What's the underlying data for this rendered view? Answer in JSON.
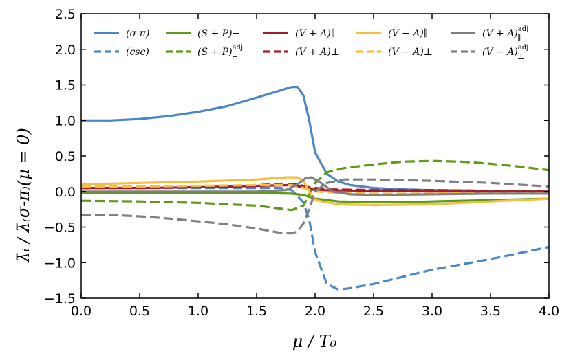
{
  "chart_data": {
    "type": "line",
    "title": "",
    "xlabel": "μ / T₀",
    "ylabel": "λ̄ᵢ / λ̄₍σ-π₎(μ = 0)",
    "xlim": [
      0.0,
      4.0
    ],
    "ylim": [
      -1.5,
      2.5
    ],
    "xticks": [
      0.0,
      0.5,
      1.0,
      1.5,
      2.0,
      2.5,
      3.0,
      3.5,
      4.0
    ],
    "yticks": [
      -1.5,
      -1.0,
      -0.5,
      0.0,
      0.5,
      1.0,
      1.5,
      2.0,
      2.5
    ],
    "xtick_labels": [
      "0.0",
      "0.5",
      "1.0",
      "1.5",
      "2.0",
      "2.5",
      "3.0",
      "3.5",
      "4.0"
    ],
    "ytick_labels": [
      "−1.5",
      "−1.0",
      "−0.5",
      "0.0",
      "0.5",
      "1.0",
      "1.5",
      "2.0",
      "2.5"
    ],
    "grid": false,
    "legend_position": "top",
    "series": [
      {
        "name": "(σ-π)",
        "color": "#4a86c8",
        "style": "solid",
        "x": [
          0,
          0.25,
          0.5,
          0.75,
          1.0,
          1.25,
          1.5,
          1.7,
          1.8,
          1.85,
          1.9,
          1.95,
          2.0,
          2.1,
          2.2,
          2.3,
          2.5,
          2.75,
          3.0,
          3.5,
          4.0
        ],
        "y": [
          1.0,
          1.0,
          1.02,
          1.06,
          1.12,
          1.2,
          1.32,
          1.42,
          1.47,
          1.47,
          1.35,
          1.0,
          0.55,
          0.25,
          0.14,
          0.09,
          0.05,
          0.03,
          0.02,
          0.01,
          0.0
        ]
      },
      {
        "name": "(csc)",
        "color": "#4a86c8",
        "style": "dashed",
        "x": [
          0,
          0.5,
          1.0,
          1.5,
          1.7,
          1.8,
          1.9,
          1.95,
          2.0,
          2.1,
          2.2,
          2.3,
          2.5,
          2.75,
          3.0,
          3.5,
          4.0
        ],
        "y": [
          0.05,
          0.05,
          0.05,
          0.05,
          0.05,
          0.02,
          -0.15,
          -0.4,
          -0.85,
          -1.3,
          -1.38,
          -1.36,
          -1.3,
          -1.2,
          -1.1,
          -0.95,
          -0.78
        ]
      },
      {
        "name": "(S+P)−",
        "color": "#5f9a14",
        "style": "solid",
        "x": [
          0,
          0.5,
          1.0,
          1.5,
          1.8,
          1.9,
          2.0,
          2.2,
          2.5,
          2.75,
          3.0,
          3.5,
          4.0
        ],
        "y": [
          -0.02,
          -0.02,
          -0.02,
          -0.02,
          -0.03,
          -0.05,
          -0.1,
          -0.14,
          -0.15,
          -0.15,
          -0.14,
          -0.12,
          -0.1
        ]
      },
      {
        "name": "(S+P)−adj",
        "color": "#5f9a14",
        "style": "dashed",
        "x": [
          0,
          0.5,
          1.0,
          1.5,
          1.7,
          1.8,
          1.9,
          2.0,
          2.1,
          2.25,
          2.5,
          2.75,
          3.0,
          3.25,
          3.5,
          3.75,
          4.0
        ],
        "y": [
          -0.13,
          -0.14,
          -0.16,
          -0.2,
          -0.24,
          -0.26,
          -0.2,
          0.12,
          0.27,
          0.33,
          0.38,
          0.42,
          0.43,
          0.42,
          0.39,
          0.35,
          0.3
        ]
      },
      {
        "name": "(V+A)∥",
        "color": "#a51d2d",
        "style": "solid",
        "x": [
          0,
          0.5,
          1.0,
          1.5,
          1.8,
          1.9,
          2.0,
          2.5,
          3.0,
          3.5,
          4.0
        ],
        "y": [
          0.05,
          0.05,
          0.06,
          0.08,
          0.09,
          0.06,
          0.02,
          0.01,
          0.0,
          0.0,
          0.0
        ]
      },
      {
        "name": "(V+A)⊥",
        "color": "#a51d2d",
        "style": "dashed",
        "x": [
          0,
          0.5,
          1.0,
          1.5,
          1.75,
          1.85,
          1.95,
          2.1,
          2.5,
          3.0,
          3.5,
          4.0
        ],
        "y": [
          0.06,
          0.06,
          0.07,
          0.09,
          0.11,
          0.1,
          0.06,
          0.03,
          0.02,
          0.02,
          0.01,
          0.01
        ]
      },
      {
        "name": "(V−A)∥",
        "color": "#f6be3c",
        "style": "solid",
        "x": [
          0,
          0.5,
          1.0,
          1.5,
          1.75,
          1.85,
          1.9,
          1.95,
          2.0,
          2.2,
          2.5,
          3.0,
          3.5,
          4.0
        ],
        "y": [
          0.1,
          0.12,
          0.14,
          0.17,
          0.2,
          0.2,
          0.15,
          0.0,
          -0.12,
          -0.18,
          -0.19,
          -0.18,
          -0.14,
          -0.1
        ]
      },
      {
        "name": "(V−A)⊥",
        "color": "#f6be3c",
        "style": "dashed",
        "x": [
          0,
          0.5,
          1.0,
          1.5,
          1.8,
          1.9,
          2.0,
          2.2,
          2.5,
          3.0,
          3.5,
          4.0
        ],
        "y": [
          0.07,
          0.07,
          0.08,
          0.09,
          0.09,
          0.05,
          0.0,
          -0.02,
          -0.03,
          -0.03,
          -0.02,
          -0.02
        ]
      },
      {
        "name": "(V+A)∥adj",
        "color": "#808080",
        "style": "solid",
        "x": [
          0,
          0.5,
          1.0,
          1.5,
          1.75,
          1.85,
          1.92,
          1.97,
          2.05,
          2.15,
          2.3,
          2.5,
          3.0,
          3.5,
          4.0
        ],
        "y": [
          0.0,
          0.0,
          0.0,
          0.0,
          0.02,
          0.1,
          0.19,
          0.2,
          0.12,
          0.0,
          -0.04,
          -0.05,
          -0.04,
          -0.03,
          -0.03
        ]
      },
      {
        "name": "(V−A)⊥adj",
        "color": "#808080",
        "style": "dashed",
        "x": [
          0,
          0.25,
          0.5,
          0.75,
          1.0,
          1.25,
          1.5,
          1.7,
          1.8,
          1.85,
          1.9,
          1.95,
          2.0,
          2.1,
          2.25,
          2.5,
          3.0,
          3.5,
          4.0
        ],
        "y": [
          -0.33,
          -0.33,
          -0.35,
          -0.38,
          -0.42,
          -0.46,
          -0.52,
          -0.58,
          -0.59,
          -0.56,
          -0.45,
          -0.25,
          0.0,
          0.12,
          0.17,
          0.17,
          0.15,
          0.12,
          0.07
        ]
      }
    ],
    "legend": [
      {
        "label": "(σ-π)",
        "series": 0
      },
      {
        "label": "(csc)",
        "series": 1
      },
      {
        "label": "(S + P)−",
        "series": 2
      },
      {
        "label": "(S + P)",
        "sup": "adj",
        "sub": "−",
        "series": 3
      },
      {
        "label": "(V + A)∥",
        "series": 4
      },
      {
        "label": "(V + A)⊥",
        "series": 5
      },
      {
        "label": "(V − A)∥",
        "series": 6
      },
      {
        "label": "(V − A)⊥",
        "series": 7
      },
      {
        "label": "(V + A)",
        "sup": "adj",
        "sub": "∥",
        "series": 8
      },
      {
        "label": "(V − A)",
        "sup": "adj",
        "sub": "⊥",
        "series": 9
      }
    ]
  }
}
